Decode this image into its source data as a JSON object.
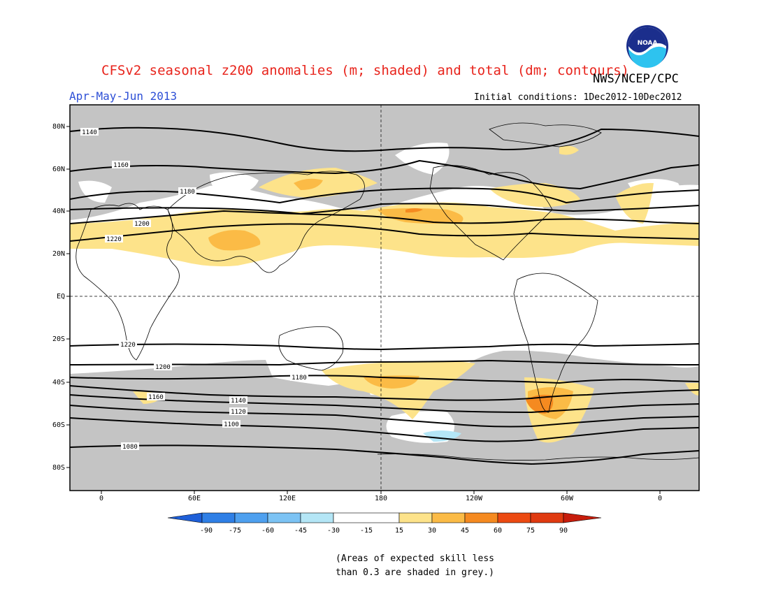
{
  "title": "CFSv2 seasonal z200 anomalies (m; shaded) and total (dm; contours)",
  "agency": "NWS/NCEP/CPC",
  "logo_text": "NOAA",
  "period": "Apr-May-Jun 2013",
  "initial_conditions": "Initial conditions: 1Dec2012-10Dec2012",
  "lat_labels": [
    "80N",
    "60N",
    "40N",
    "20N",
    "EQ",
    "20S",
    "40S",
    "60S",
    "80S"
  ],
  "lon_labels": [
    "0",
    "60E",
    "120E",
    "180",
    "120W",
    "60W",
    "0"
  ],
  "contour_levels": [
    "1140",
    "1160",
    "1180",
    "1200",
    "1220",
    "1220",
    "1200",
    "1180",
    "1160",
    "1140",
    "1120",
    "1100",
    "1080"
  ],
  "colorbar": {
    "ticks": [
      "-90",
      "-75",
      "-60",
      "-45",
      "-30",
      "-15",
      "15",
      "30",
      "45",
      "60",
      "75",
      "90"
    ],
    "colors": [
      "#1e5fd8",
      "#2f7fe6",
      "#4ea0ef",
      "#7cc3f4",
      "#b4e6f6",
      "#ffffff",
      "#fde38a",
      "#fbbb46",
      "#f58a20",
      "#ec4a12",
      "#c71d0c"
    ]
  },
  "skill_note": [
    "(Areas of expected skill less",
    "than 0.3 are shaded in grey.)"
  ],
  "colors": {
    "title": "#e8241c",
    "period": "#2d4fd6",
    "grey": "#c4c4c4"
  }
}
